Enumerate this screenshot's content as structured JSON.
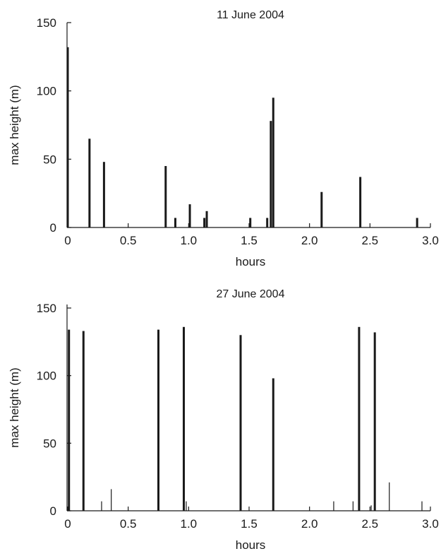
{
  "chart_data": [
    {
      "type": "bar",
      "title": "11 June 2004",
      "xlabel": "hours",
      "ylabel": "max height (m)",
      "xlim": [
        0,
        3.0
      ],
      "ylim": [
        0,
        150
      ],
      "x_ticks": [
        "0",
        "0.5",
        "1.0",
        "1.5",
        "2.0",
        "2.5",
        "3.0"
      ],
      "y_ticks": [
        "0",
        "50",
        "100",
        "150"
      ],
      "grid": false,
      "legend": "none",
      "series": [
        {
          "x": [
            0.0,
            0.18,
            0.3,
            0.81,
            0.89,
            1.01,
            1.13,
            1.15,
            1.51,
            1.65,
            1.68,
            1.7,
            2.1,
            2.42,
            2.89
          ],
          "y": [
            132,
            65,
            48,
            45,
            7,
            17,
            7,
            12,
            7,
            7,
            78,
            95,
            26,
            37,
            7
          ],
          "weight": [
            "thick",
            "thick",
            "thick",
            "thick",
            "thick",
            "thick",
            "thick",
            "thick",
            "thick",
            "thick",
            "thick",
            "thick",
            "thick",
            "thick",
            "thick"
          ]
        }
      ]
    },
    {
      "type": "bar",
      "title": "27 June 2004",
      "xlabel": "hours",
      "ylabel": "max height (m)",
      "xlim": [
        0,
        3.0
      ],
      "ylim": [
        0,
        150
      ],
      "x_ticks": [
        "0",
        "0.5",
        "1.0",
        "1.5",
        "2.0",
        "2.5",
        "3.0"
      ],
      "y_ticks": [
        "0",
        "50",
        "100",
        "150"
      ],
      "grid": false,
      "legend": "none",
      "series": [
        {
          "x": [
            0.01,
            0.13,
            0.28,
            0.36,
            0.75,
            0.96,
            0.98,
            1.43,
            1.7,
            2.2,
            2.36,
            2.41,
            2.51,
            2.54,
            2.66,
            2.93
          ],
          "y": [
            134,
            133,
            7,
            16,
            134,
            136,
            7,
            130,
            98,
            7,
            7,
            136,
            4,
            132,
            21,
            7
          ],
          "weight": [
            "thick",
            "thick",
            "thin",
            "thin",
            "thick",
            "thick",
            "thin",
            "thick",
            "thick",
            "thin",
            "thin",
            "thick",
            "thin",
            "thick",
            "thin",
            "thin"
          ]
        }
      ]
    }
  ]
}
